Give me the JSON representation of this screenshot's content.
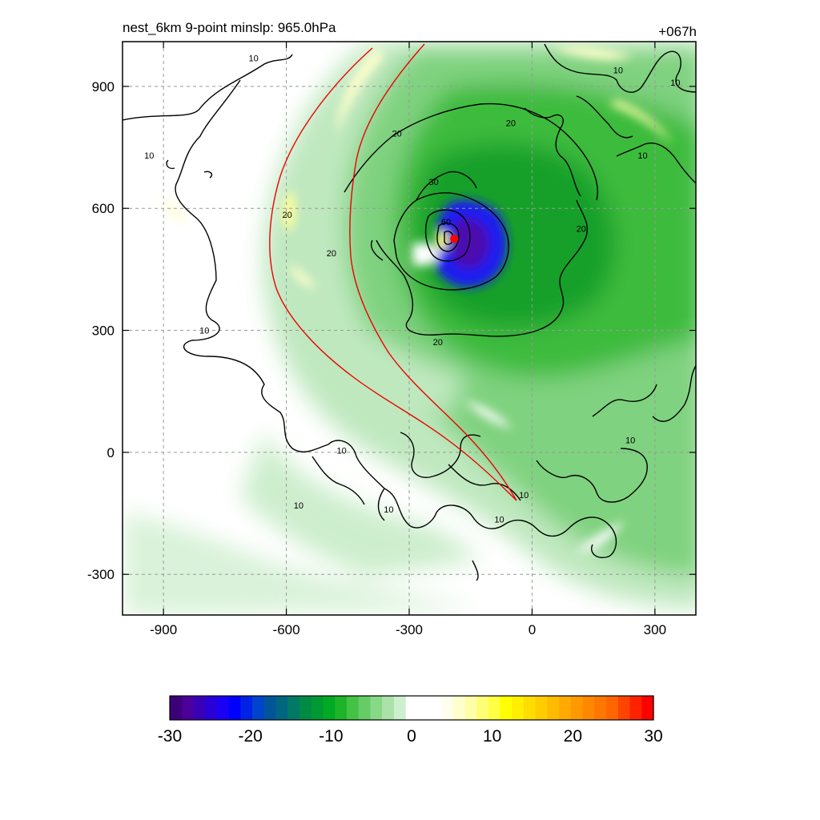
{
  "chart_data": {
    "type": "heatmap",
    "title": "nest_6km  9-point minslp: 965.0hPa",
    "time_label": "+067h",
    "x": {
      "range": [
        -1000,
        400
      ],
      "ticks": [
        -900,
        -600,
        -300,
        0,
        300
      ],
      "tick_labels": [
        "-900",
        "-600",
        "-300",
        "0",
        "300"
      ]
    },
    "y": {
      "range": [
        -400,
        1010
      ],
      "ticks": [
        -300,
        0,
        300,
        600,
        900
      ],
      "tick_labels": [
        "-300",
        "0",
        "300",
        "600",
        "900"
      ]
    },
    "grid": true,
    "grid_style": "dashed",
    "colorbar": {
      "range": [
        -30,
        30
      ],
      "ticks": [
        -30,
        -20,
        -10,
        0,
        10,
        20,
        30
      ],
      "tick_labels": [
        "-30",
        "-20",
        "-10",
        "0",
        "10",
        "20",
        "30"
      ],
      "colors": [
        "#3c0078",
        "#4b0099",
        "#3a00b8",
        "#2a00d8",
        "#1a00f5",
        "#0000ff",
        "#0022e6",
        "#0044cc",
        "#005599",
        "#006680",
        "#007a66",
        "#008a44",
        "#009933",
        "#00aa22",
        "#1eb42a",
        "#44c244",
        "#66cc66",
        "#88d888",
        "#aae2aa",
        "#ccefcc",
        "#ffffff",
        "#ffffff",
        "#ffffff",
        "#ffffee",
        "#ffffcc",
        "#ffffaa",
        "#ffff77",
        "#ffff44",
        "#ffff00",
        "#ffee00",
        "#ffdd00",
        "#ffcc00",
        "#ffbb00",
        "#ffaa00",
        "#ff9900",
        "#ff8800",
        "#ff7700",
        "#ff6600",
        "#ff4400",
        "#ff2200",
        "#ff0000"
      ]
    },
    "center_marker": {
      "x": -190,
      "y": 525,
      "color": "#ff0000"
    },
    "contour_labels": [
      {
        "text": "10",
        "x": -680,
        "y": 970
      },
      {
        "text": "10",
        "x": -935,
        "y": 730
      },
      {
        "text": "10",
        "x": -800,
        "y": 300
      },
      {
        "text": "20",
        "x": -598,
        "y": 585
      },
      {
        "text": "20",
        "x": -490,
        "y": 490
      },
      {
        "text": "20",
        "x": -330,
        "y": 785
      },
      {
        "text": "20",
        "x": -52,
        "y": 810
      },
      {
        "text": "20",
        "x": -230,
        "y": 272
      },
      {
        "text": "20",
        "x": 120,
        "y": 550
      },
      {
        "text": "30",
        "x": -240,
        "y": 665
      },
      {
        "text": "60",
        "x": -210,
        "y": 567
      },
      {
        "text": "10",
        "x": -465,
        "y": 5
      },
      {
        "text": "10",
        "x": -570,
        "y": -130
      },
      {
        "text": "10",
        "x": -350,
        "y": -140
      },
      {
        "text": "10",
        "x": -20,
        "y": -105
      },
      {
        "text": "10",
        "x": -80,
        "y": -165
      },
      {
        "text": "10",
        "x": 240,
        "y": 30
      },
      {
        "text": "10",
        "x": 270,
        "y": 730
      },
      {
        "text": "10",
        "x": 350,
        "y": 910
      },
      {
        "text": "10",
        "x": 210,
        "y": 940
      }
    ],
    "colors": {
      "contour": "#000000",
      "front": "#ee0000",
      "grid": "#999999"
    }
  }
}
